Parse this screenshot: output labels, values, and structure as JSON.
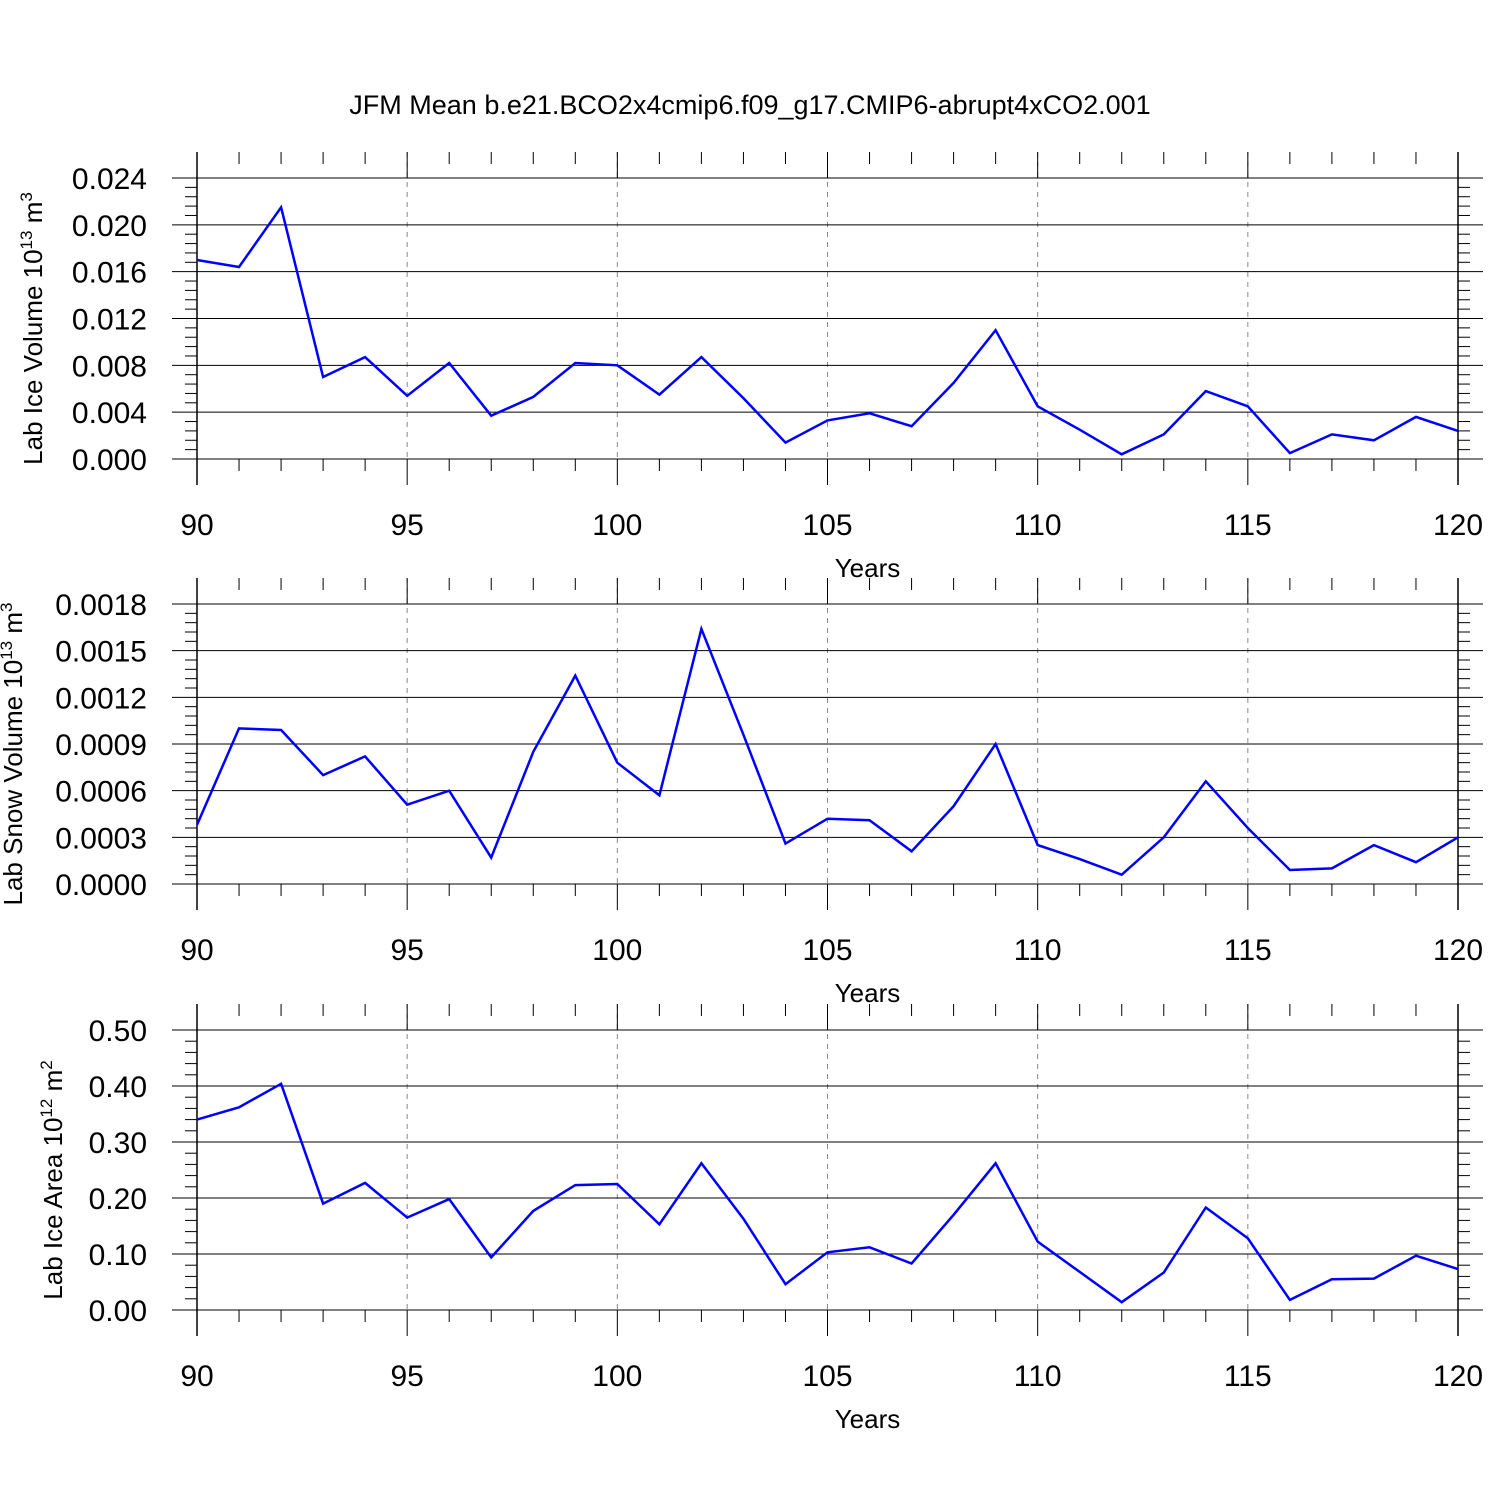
{
  "title": "JFM Mean b.e21.BCO2x4cmip6.f09_g17.CMIP6-abrupt4xCO2.001",
  "line_color": "#0000ff",
  "chart_data": [
    {
      "type": "line",
      "xlabel": "Years",
      "ylabel": "Lab Ice Volume 10",
      "ylabel_sup": "13",
      "ylabel_unit": "m",
      "ylabel_unit_sup": "3",
      "xlim": [
        90,
        120
      ],
      "ylim": [
        0,
        0.024
      ],
      "xticks": [
        "90",
        "95",
        "100",
        "105",
        "110",
        "115",
        "120"
      ],
      "yticks": [
        "0.000",
        "0.004",
        "0.008",
        "0.012",
        "0.016",
        "0.020",
        "0.024"
      ],
      "x": [
        90,
        91,
        92,
        93,
        94,
        95,
        96,
        97,
        98,
        99,
        100,
        101,
        102,
        103,
        104,
        105,
        106,
        107,
        108,
        109,
        110,
        111,
        112,
        113,
        114,
        115,
        116,
        117,
        118,
        119,
        120
      ],
      "values": [
        0.017,
        0.0164,
        0.0215,
        0.007,
        0.0087,
        0.0054,
        0.0082,
        0.0037,
        0.0053,
        0.0082,
        0.008,
        0.0055,
        0.0087,
        0.0052,
        0.0014,
        0.0033,
        0.0039,
        0.0028,
        0.0065,
        0.011,
        0.0045,
        0.0025,
        0.0004,
        0.0021,
        0.0058,
        0.0045,
        0.0005,
        0.0021,
        0.0016,
        0.0036,
        0.0024
      ]
    },
    {
      "type": "line",
      "xlabel": "Years",
      "ylabel": "Lab Snow Volume 10",
      "ylabel_sup": "13",
      "ylabel_unit": "m",
      "ylabel_unit_sup": "3",
      "xlim": [
        90,
        120
      ],
      "ylim": [
        0,
        0.0018
      ],
      "xticks": [
        "90",
        "95",
        "100",
        "105",
        "110",
        "115",
        "120"
      ],
      "yticks": [
        "0.0000",
        "0.0003",
        "0.0006",
        "0.0009",
        "0.0012",
        "0.0015",
        "0.0018"
      ],
      "x": [
        90,
        91,
        92,
        93,
        94,
        95,
        96,
        97,
        98,
        99,
        100,
        101,
        102,
        103,
        104,
        105,
        106,
        107,
        108,
        109,
        110,
        111,
        112,
        113,
        114,
        115,
        116,
        117,
        118,
        119,
        120
      ],
      "values": [
        0.00038,
        0.001,
        0.00099,
        0.0007,
        0.00082,
        0.00051,
        0.0006,
        0.00017,
        0.00085,
        0.00134,
        0.00078,
        0.00057,
        0.00164,
        0.00096,
        0.00026,
        0.00042,
        0.00041,
        0.00021,
        0.0005,
        0.0009,
        0.00025,
        0.00016,
        6e-05,
        0.0003,
        0.00066,
        0.00036,
        9e-05,
        0.0001,
        0.00025,
        0.00014,
        0.0003
      ]
    },
    {
      "type": "line",
      "xlabel": "Years",
      "ylabel": "Lab Ice Area 10",
      "ylabel_sup": "12",
      "ylabel_unit": "m",
      "ylabel_unit_sup": "2",
      "xlim": [
        90,
        120
      ],
      "ylim": [
        0,
        0.5
      ],
      "xticks": [
        "90",
        "95",
        "100",
        "105",
        "110",
        "115",
        "120"
      ],
      "yticks": [
        "0.00",
        "0.10",
        "0.20",
        "0.30",
        "0.40",
        "0.50"
      ],
      "x": [
        90,
        91,
        92,
        93,
        94,
        95,
        96,
        97,
        98,
        99,
        100,
        101,
        102,
        103,
        104,
        105,
        106,
        107,
        108,
        109,
        110,
        111,
        112,
        113,
        114,
        115,
        116,
        117,
        118,
        119,
        120
      ],
      "values": [
        0.34,
        0.362,
        0.404,
        0.19,
        0.227,
        0.165,
        0.198,
        0.094,
        0.177,
        0.223,
        0.225,
        0.153,
        0.262,
        0.163,
        0.046,
        0.103,
        0.112,
        0.083,
        0.17,
        0.262,
        0.122,
        0.068,
        0.014,
        0.067,
        0.183,
        0.128,
        0.018,
        0.055,
        0.056,
        0.097,
        0.073
      ]
    }
  ]
}
